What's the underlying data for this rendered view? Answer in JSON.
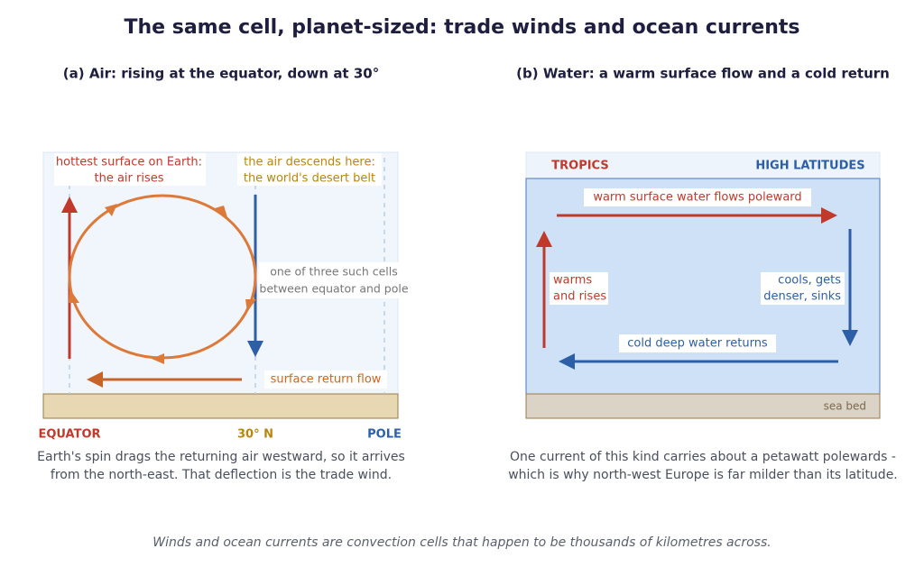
{
  "title": "The same cell, planet-sized: trade winds and ocean currents",
  "panel_a": {
    "title": "(a) Air: rising at the equator, down at 30°",
    "rise_label": [
      "hottest surface on Earth:",
      "the air rises"
    ],
    "descend_label": [
      "the air descends here:",
      "the world's desert belt"
    ],
    "cells_note": [
      "one of three such cells",
      "between equator and pole"
    ],
    "return_label": "surface return flow",
    "axis_labels": [
      "EQUATOR",
      "30° N",
      "POLE"
    ],
    "caption": [
      "Earth's spin drags the returning air westward, so it arrives",
      "from the north-east. That deflection is the trade wind."
    ]
  },
  "panel_b": {
    "title": "(b) Water: a warm surface flow and a cold return",
    "left_header": "TROPICS",
    "right_header": "HIGH LATITUDES",
    "surface_label": "warm surface water flows poleward",
    "rise_label": [
      "warms",
      "and rises"
    ],
    "sink_label": [
      "cools, gets",
      "denser, sinks"
    ],
    "deep_label": "cold deep water returns",
    "seabed_label": "sea bed",
    "caption": [
      "One current of this kind carries about a petawatt polewards -",
      "which is why north-west Europe is far milder than its latitude."
    ]
  },
  "footer": "Winds and ocean currents are convection cells that happen to be thousands of kilometres across."
}
